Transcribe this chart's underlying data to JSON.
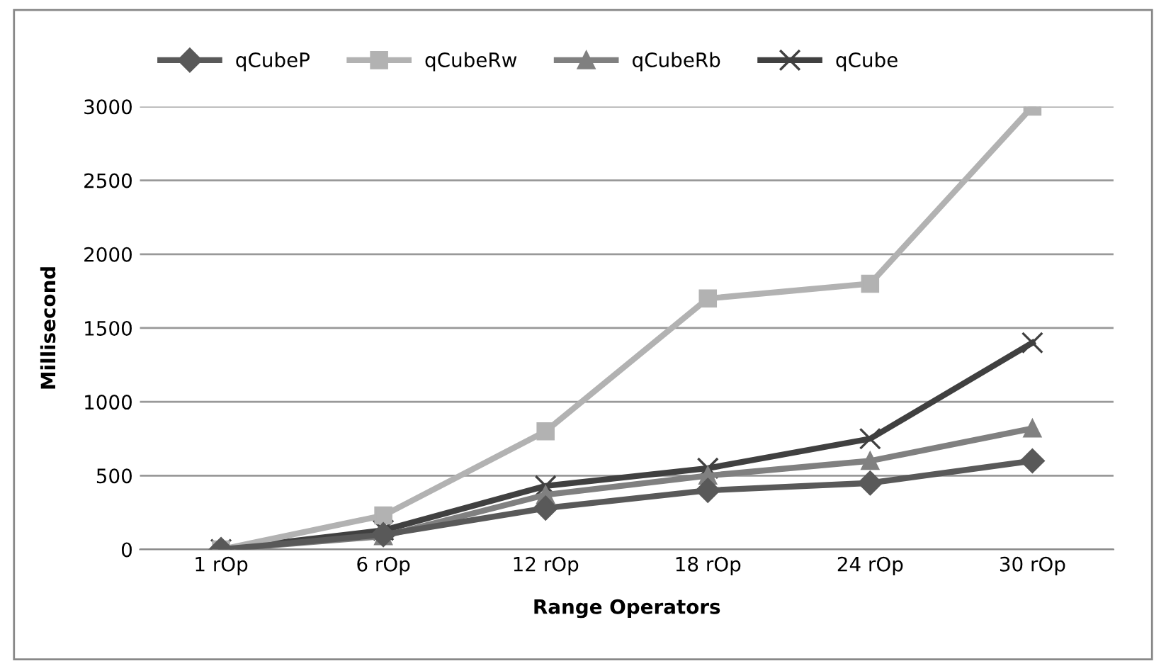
{
  "chart_data": {
    "type": "line",
    "xlabel": "Range Operators",
    "ylabel": "Millisecond",
    "categories": [
      "1 rOp",
      "6 rOp",
      "12 rOp",
      "18 rOp",
      "24 rOp",
      "30 rOp"
    ],
    "series": [
      {
        "name": "qCubeP",
        "color": "#595959",
        "marker": "diamond",
        "values": [
          0,
          100,
          280,
          400,
          450,
          600
        ]
      },
      {
        "name": "qCubeRw",
        "color": "#b2b2b2",
        "marker": "square",
        "values": [
          0,
          230,
          800,
          1700,
          1800,
          3000
        ]
      },
      {
        "name": "qCubeRb",
        "color": "#808080",
        "marker": "triangle",
        "values": [
          0,
          90,
          370,
          500,
          600,
          820
        ]
      },
      {
        "name": "qCube",
        "color": "#404040",
        "marker": "cross",
        "values": [
          0,
          130,
          430,
          550,
          750,
          1400
        ]
      }
    ],
    "ylim": [
      0,
      3000
    ],
    "yticks": [
      0,
      500,
      1000,
      1500,
      2000,
      2500,
      3000
    ],
    "grid": "y",
    "legend": "top"
  }
}
